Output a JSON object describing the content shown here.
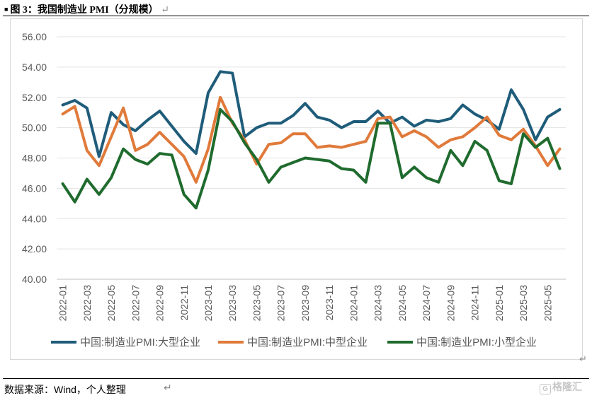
{
  "figure": {
    "caption": "图 3：我国制造业 PMI（分规模）",
    "caption_mark": "■",
    "return_mark": "↵"
  },
  "source": {
    "text": "数据来源：Wind，个人整理"
  },
  "watermark": {
    "glyph": "G",
    "text": "格隆汇"
  },
  "chart_data": {
    "type": "line",
    "title": "",
    "xlabel": "",
    "ylabel": "",
    "ylim": [
      40,
      56
    ],
    "yticks": [
      "40.00",
      "42.00",
      "44.00",
      "46.00",
      "48.00",
      "50.00",
      "52.00",
      "54.00",
      "56.00"
    ],
    "xtick_labels": [
      "2022-01",
      "2022-03",
      "2022-05",
      "2022-07",
      "2022-09",
      "2022-11",
      "2023-01",
      "2023-03",
      "2023-05",
      "2023-07",
      "2023-09",
      "2023-11",
      "2024-01",
      "2024-03",
      "2024-05",
      "2024-07",
      "2024-09",
      "2024-11",
      "2025-01",
      "2025-03",
      "2025-05"
    ],
    "grid": "horizontal",
    "legend": "bottom",
    "categories": [
      "2022-01",
      "2022-02",
      "2022-03",
      "2022-04",
      "2022-05",
      "2022-06",
      "2022-07",
      "2022-08",
      "2022-09",
      "2022-10",
      "2022-11",
      "2022-12",
      "2023-01",
      "2023-02",
      "2023-03",
      "2023-04",
      "2023-05",
      "2023-06",
      "2023-07",
      "2023-08",
      "2023-09",
      "2023-10",
      "2023-11",
      "2023-12",
      "2024-01",
      "2024-02",
      "2024-03",
      "2024-04",
      "2024-05",
      "2024-06",
      "2024-07",
      "2024-08",
      "2024-09",
      "2024-10",
      "2024-11",
      "2024-12",
      "2025-01",
      "2025-02",
      "2025-03",
      "2025-04",
      "2025-05",
      "2025-06"
    ],
    "series": [
      {
        "name": "中国:制造业PMI:大型企业",
        "color": "#1f5c7a",
        "values": [
          51.5,
          51.8,
          51.3,
          48.1,
          51.0,
          50.2,
          49.8,
          50.5,
          51.1,
          50.1,
          49.1,
          48.3,
          52.3,
          53.7,
          53.6,
          49.4,
          50.0,
          50.3,
          50.3,
          50.8,
          51.6,
          50.7,
          50.5,
          50.0,
          50.4,
          50.4,
          51.1,
          50.3,
          50.7,
          50.1,
          50.5,
          50.4,
          50.6,
          51.5,
          50.9,
          50.5,
          49.9,
          52.5,
          51.2,
          49.2,
          50.7,
          51.2
        ]
      },
      {
        "name": "中国:制造业PMI:中型企业",
        "color": "#e07a3b",
        "values": [
          50.9,
          51.4,
          48.5,
          47.5,
          49.4,
          51.3,
          48.5,
          48.9,
          49.7,
          48.9,
          48.1,
          46.4,
          48.6,
          52.0,
          50.3,
          49.2,
          47.6,
          48.9,
          49.0,
          49.6,
          49.6,
          48.7,
          48.8,
          48.7,
          48.9,
          49.1,
          50.6,
          50.7,
          49.4,
          49.8,
          49.4,
          48.7,
          49.2,
          49.4,
          50.0,
          50.7,
          49.5,
          49.2,
          49.9,
          48.8,
          47.5,
          48.6
        ]
      },
      {
        "name": "中国:制造业PMI:小型企业",
        "color": "#1f6b2e",
        "values": [
          46.3,
          45.1,
          46.6,
          45.6,
          46.7,
          48.6,
          47.9,
          47.6,
          48.3,
          48.2,
          45.6,
          44.7,
          47.2,
          51.2,
          50.4,
          49.0,
          47.9,
          46.4,
          47.4,
          47.7,
          48.0,
          47.9,
          47.8,
          47.3,
          47.2,
          46.4,
          50.3,
          50.3,
          46.7,
          47.4,
          46.7,
          46.4,
          48.5,
          47.5,
          49.1,
          48.5,
          46.5,
          46.3,
          49.6,
          48.7,
          49.3,
          47.3
        ]
      }
    ]
  }
}
